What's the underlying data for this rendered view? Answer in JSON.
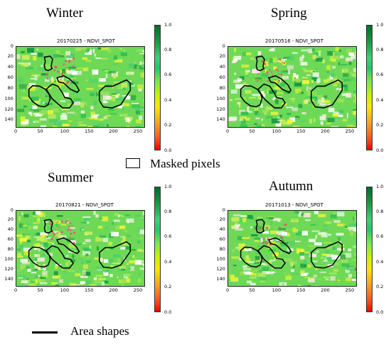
{
  "legend": {
    "masked_label": "Masked pixels",
    "shapes_label": "Area shapes"
  },
  "colormap": {
    "ticks": [
      "1.0",
      "0.8",
      "0.6",
      "0.4",
      "0.2",
      "0.0"
    ],
    "colors": [
      "#ff0000",
      "#ffa31c",
      "#ffe600",
      "#7ce84c",
      "#1ec86e",
      "#006d2c"
    ]
  },
  "axes": {
    "y_ticks": [
      "0",
      "20",
      "40",
      "60",
      "80",
      "100",
      "120",
      "140"
    ],
    "x_ticks": [
      "0",
      "50",
      "100",
      "150",
      "200",
      "250"
    ],
    "x_range": [
      0,
      265
    ],
    "y_range": [
      0,
      155
    ]
  },
  "panels": [
    {
      "season": "Winter",
      "title": "20170225 - NDVI_SPOT"
    },
    {
      "season": "Spring",
      "title": "20170516 - NDVI_SPOT"
    },
    {
      "season": "Summer",
      "title": "20170821 - NDVI_SPOT"
    },
    {
      "season": "Autumn",
      "title": "20171013 - NDVI_SPOT"
    }
  ]
}
